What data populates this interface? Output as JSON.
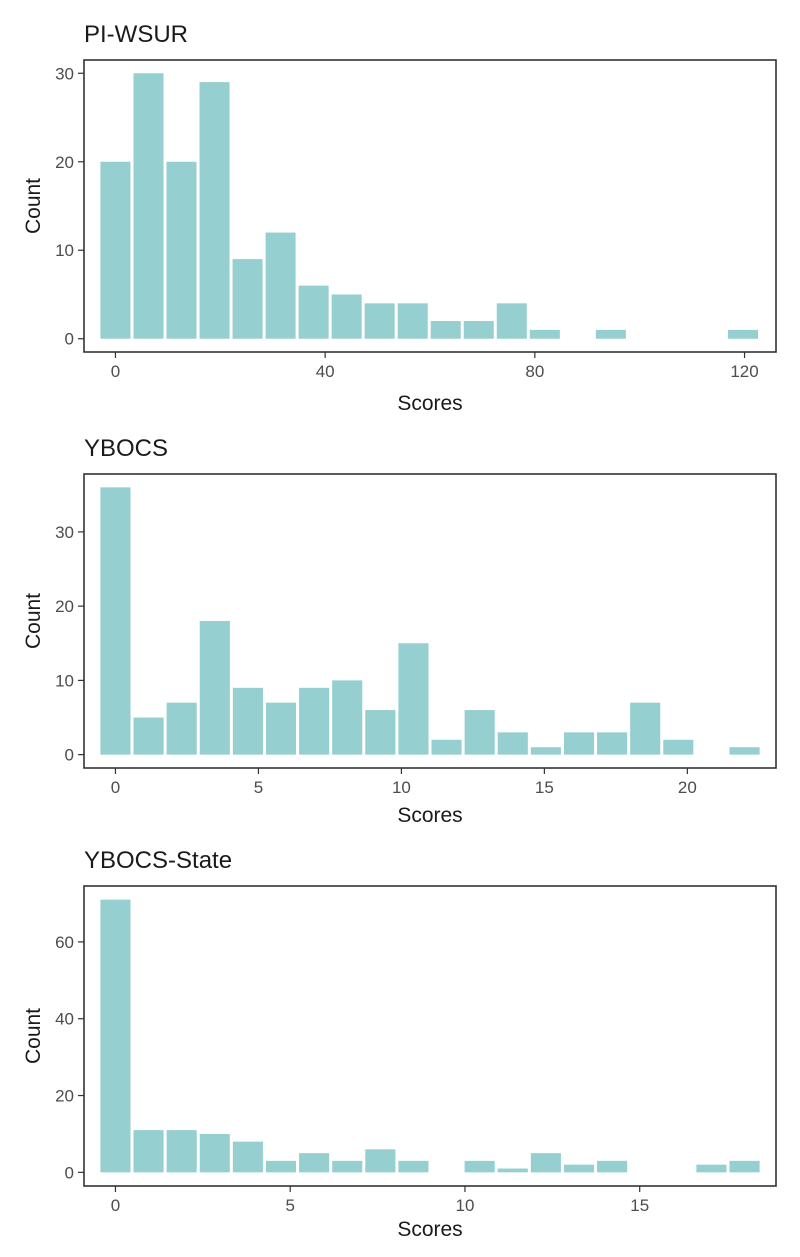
{
  "colors": {
    "bar": "#96cfcf",
    "panel_border": "#333333",
    "text": "#1a1a1a",
    "tick_text": "#4d4d4d"
  },
  "chart_data": [
    {
      "type": "bar",
      "title": "PI-WSUR",
      "xlabel": "Scores",
      "ylabel": "Count",
      "xlim": [
        -6,
        126
      ],
      "ylim": [
        -1.5,
        31.5
      ],
      "xticks": [
        0,
        40,
        80,
        120
      ],
      "yticks": [
        0,
        10,
        20,
        30
      ],
      "bin_centers": [
        0,
        6.3,
        12.6,
        18.9,
        25.2,
        31.5,
        37.8,
        44.1,
        50.4,
        56.7,
        63,
        69.3,
        75.6,
        81.9,
        88.2,
        94.5,
        100.8,
        107.1,
        113.4,
        119.7
      ],
      "bin_width": 6.3,
      "values": [
        20,
        30,
        20,
        29,
        9,
        12,
        6,
        5,
        4,
        4,
        2,
        2,
        4,
        1,
        0,
        1,
        0,
        0,
        0,
        1
      ]
    },
    {
      "type": "bar",
      "title": "YBOCS",
      "xlabel": "Scores",
      "ylabel": "Count",
      "xlim": [
        -1.1,
        23.1
      ],
      "ylim": [
        -1.8,
        37.8
      ],
      "xticks": [
        0,
        5,
        10,
        15,
        20
      ],
      "yticks": [
        0,
        10,
        20,
        30
      ],
      "bin_centers": [
        0,
        1.158,
        2.316,
        3.474,
        4.632,
        5.789,
        6.947,
        8.105,
        9.263,
        10.421,
        11.579,
        12.737,
        13.895,
        15.053,
        16.211,
        17.368,
        18.526,
        19.684,
        20.842,
        22
      ],
      "bin_width": 1.158,
      "values": [
        36,
        5,
        7,
        18,
        9,
        7,
        9,
        10,
        6,
        15,
        2,
        6,
        3,
        1,
        3,
        3,
        7,
        2,
        0,
        1
      ]
    },
    {
      "type": "bar",
      "title": "YBOCS-State",
      "xlabel": "Scores",
      "ylabel": "Count",
      "xlim": [
        -0.9,
        18.9
      ],
      "ylim": [
        -3.55,
        74.55
      ],
      "xticks": [
        0,
        5,
        10,
        15
      ],
      "yticks": [
        0,
        20,
        40,
        60
      ],
      "bin_centers": [
        0,
        0.947,
        1.895,
        2.842,
        3.789,
        4.737,
        5.684,
        6.632,
        7.579,
        8.526,
        9.474,
        10.421,
        11.368,
        12.316,
        13.263,
        14.211,
        15.158,
        16.105,
        17.053,
        18
      ],
      "bin_width": 0.947,
      "values": [
        71,
        11,
        11,
        10,
        8,
        3,
        5,
        3,
        6,
        3,
        0,
        3,
        1,
        5,
        2,
        3,
        0,
        0,
        2,
        3
      ]
    }
  ]
}
